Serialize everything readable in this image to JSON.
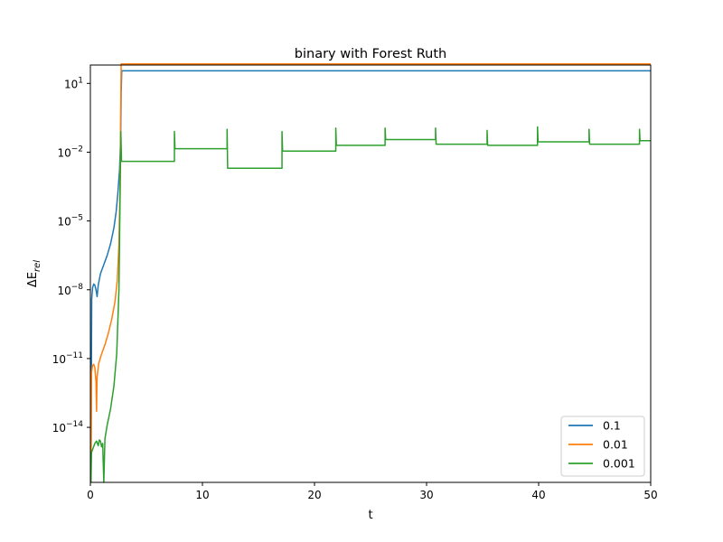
{
  "chart_data": {
    "type": "line",
    "title": "binary with Forest Ruth",
    "xlabel": "t",
    "ylabel": "ΔE_rel",
    "xlim": [
      0,
      50
    ],
    "ylim_log10": [
      -16.4,
      1.8
    ],
    "yscale": "log",
    "grid": false,
    "legend_position": "bottom-right",
    "x_ticks": [
      {
        "value": 0,
        "label": "0"
      },
      {
        "value": 10,
        "label": "10"
      },
      {
        "value": 20,
        "label": "20"
      },
      {
        "value": 30,
        "label": "30"
      },
      {
        "value": 40,
        "label": "40"
      },
      {
        "value": 50,
        "label": "50"
      }
    ],
    "y_ticks": [
      {
        "exp": 1,
        "label": "1"
      },
      {
        "exp": -2,
        "label": "−2"
      },
      {
        "exp": -5,
        "label": "−5"
      },
      {
        "exp": -8,
        "label": "−8"
      },
      {
        "exp": -11,
        "label": "−11"
      },
      {
        "exp": -14,
        "label": "−14"
      }
    ],
    "series": [
      {
        "name": "0.1",
        "color": "#1f77b4",
        "log10_points": [
          [
            0.05,
            -16.4
          ],
          [
            0.12,
            -8.4
          ],
          [
            0.2,
            -7.9
          ],
          [
            0.3,
            -7.75
          ],
          [
            0.4,
            -7.8
          ],
          [
            0.5,
            -8.0
          ],
          [
            0.6,
            -8.3
          ],
          [
            0.7,
            -7.8
          ],
          [
            0.9,
            -7.3
          ],
          [
            1.2,
            -6.9
          ],
          [
            1.5,
            -6.5
          ],
          [
            1.8,
            -6.0
          ],
          [
            2.1,
            -5.3
          ],
          [
            2.3,
            -4.6
          ],
          [
            2.45,
            -3.8
          ],
          [
            2.6,
            -2.8
          ],
          [
            2.7,
            -1.5
          ],
          [
            2.75,
            0.6
          ],
          [
            2.8,
            1.55
          ],
          [
            10,
            1.55
          ],
          [
            20,
            1.55
          ],
          [
            30,
            1.55
          ],
          [
            40,
            1.55
          ],
          [
            50,
            1.55
          ]
        ]
      },
      {
        "name": "0.01",
        "color": "#ff7f0e",
        "log10_points": [
          [
            0.05,
            -16.4
          ],
          [
            0.1,
            -11.6
          ],
          [
            0.2,
            -11.3
          ],
          [
            0.3,
            -11.25
          ],
          [
            0.4,
            -11.4
          ],
          [
            0.5,
            -12.0
          ],
          [
            0.55,
            -13.3
          ],
          [
            0.6,
            -11.8
          ],
          [
            0.75,
            -11.2
          ],
          [
            1.0,
            -10.8
          ],
          [
            1.3,
            -10.4
          ],
          [
            1.6,
            -9.9
          ],
          [
            1.9,
            -9.3
          ],
          [
            2.2,
            -8.5
          ],
          [
            2.4,
            -7.6
          ],
          [
            2.55,
            -6.0
          ],
          [
            2.65,
            -3.5
          ],
          [
            2.7,
            -0.5
          ],
          [
            2.75,
            1.85
          ],
          [
            10,
            1.85
          ],
          [
            20,
            1.85
          ],
          [
            30,
            1.85
          ],
          [
            40,
            1.85
          ],
          [
            50,
            1.85
          ]
        ]
      },
      {
        "name": "0.001",
        "color": "#2ca02c",
        "log10_points": [
          [
            0.05,
            -16.4
          ],
          [
            0.1,
            -15.1
          ],
          [
            0.25,
            -14.9
          ],
          [
            0.4,
            -14.7
          ],
          [
            0.55,
            -14.6
          ],
          [
            0.7,
            -14.8
          ],
          [
            0.8,
            -14.55
          ],
          [
            0.9,
            -14.6
          ],
          [
            1.0,
            -14.85
          ],
          [
            1.1,
            -14.7
          ],
          [
            1.2,
            -16.4
          ],
          [
            1.3,
            -14.5
          ],
          [
            1.5,
            -13.9
          ],
          [
            1.8,
            -13.2
          ],
          [
            2.1,
            -12.2
          ],
          [
            2.35,
            -10.8
          ],
          [
            2.55,
            -8.0
          ],
          [
            2.65,
            -4.0
          ],
          [
            2.72,
            -1.1
          ],
          [
            2.78,
            -2.4
          ],
          [
            7.5,
            -2.4
          ],
          [
            7.5,
            -1.1
          ],
          [
            7.55,
            -1.85
          ],
          [
            12.2,
            -1.85
          ],
          [
            12.2,
            -1.0
          ],
          [
            12.25,
            -2.7
          ],
          [
            17.1,
            -2.7
          ],
          [
            17.1,
            -1.1
          ],
          [
            17.15,
            -1.95
          ],
          [
            21.9,
            -1.95
          ],
          [
            21.9,
            -0.95
          ],
          [
            21.95,
            -1.7
          ],
          [
            26.3,
            -1.7
          ],
          [
            26.3,
            -0.95
          ],
          [
            26.35,
            -1.45
          ],
          [
            30.8,
            -1.45
          ],
          [
            30.8,
            -0.95
          ],
          [
            30.85,
            -1.65
          ],
          [
            35.4,
            -1.65
          ],
          [
            35.4,
            -1.05
          ],
          [
            35.45,
            -1.7
          ],
          [
            39.9,
            -1.7
          ],
          [
            39.9,
            -0.9
          ],
          [
            39.95,
            -1.55
          ],
          [
            44.5,
            -1.55
          ],
          [
            44.5,
            -1.0
          ],
          [
            44.55,
            -1.65
          ],
          [
            49.0,
            -1.65
          ],
          [
            49.0,
            -1.0
          ],
          [
            49.05,
            -1.5
          ],
          [
            50,
            -1.5
          ]
        ]
      }
    ]
  }
}
